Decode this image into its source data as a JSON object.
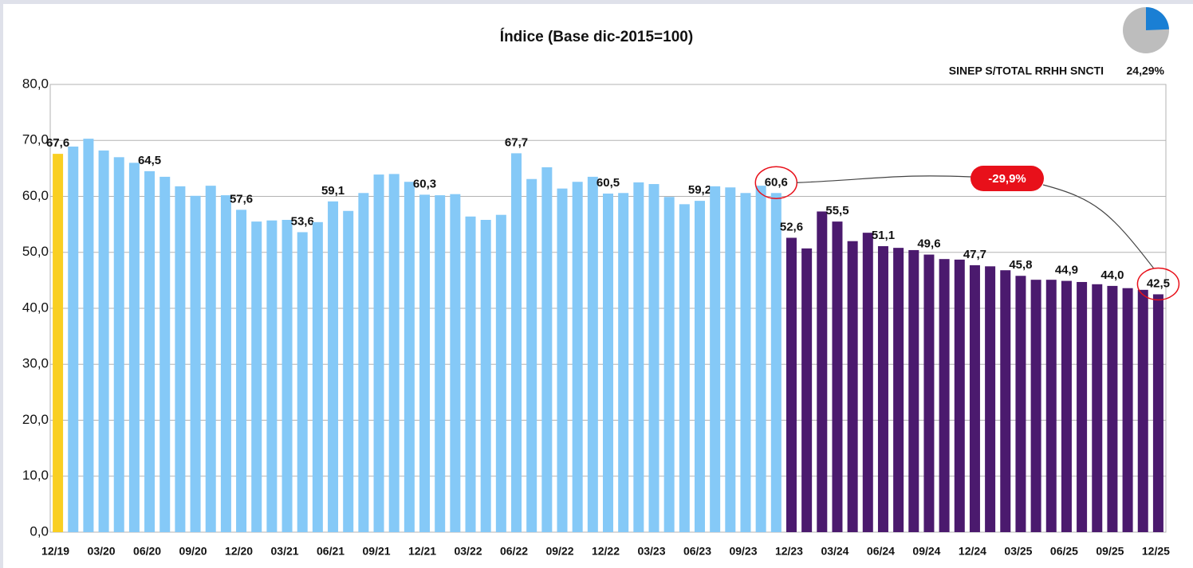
{
  "chart_data": {
    "type": "bar",
    "title": "Índice (Base dic-2015=100)",
    "categories": [
      "12/19",
      null,
      null,
      "03/20",
      null,
      null,
      "06/20",
      null,
      null,
      "09/20",
      null,
      null,
      "12/20",
      null,
      null,
      "03/21",
      null,
      null,
      "06/21",
      null,
      null,
      "09/21",
      null,
      null,
      "12/21",
      null,
      null,
      "03/22",
      null,
      null,
      "06/22",
      null,
      null,
      "09/22",
      null,
      null,
      "12/22",
      null,
      null,
      "03/23",
      null,
      null,
      "06/23",
      null,
      null,
      "09/23",
      null,
      null,
      "12/23",
      null,
      null,
      "03/24",
      null,
      null,
      "06/24",
      null,
      null,
      "09/24",
      null,
      null,
      "12/24",
      null,
      null,
      "03/25",
      null,
      null,
      "06/25",
      null,
      null,
      "09/25",
      null,
      null,
      "12/25"
    ],
    "values": [
      67.6,
      68.9,
      70.3,
      68.2,
      67.0,
      66.0,
      64.5,
      63.5,
      61.8,
      60.1,
      61.9,
      60.2,
      57.6,
      55.5,
      55.7,
      55.8,
      53.6,
      55.4,
      59.1,
      57.4,
      60.6,
      63.9,
      64.0,
      62.6,
      60.3,
      60.2,
      60.4,
      56.4,
      55.8,
      56.7,
      67.7,
      63.1,
      65.2,
      61.4,
      62.6,
      63.5,
      60.5,
      60.6,
      62.5,
      62.2,
      59.9,
      58.6,
      59.2,
      61.8,
      61.6,
      60.6,
      61.9,
      60.6,
      52.6,
      50.7,
      57.3,
      55.5,
      52.0,
      53.5,
      51.1,
      50.8,
      50.4,
      49.6,
      48.8,
      48.7,
      47.7,
      47.5,
      46.8,
      45.8,
      45.1,
      45.1,
      44.9,
      44.7,
      44.3,
      44.0,
      43.6,
      43.3,
      42.5
    ],
    "value_labels": [
      "67,6",
      null,
      null,
      null,
      null,
      null,
      "64,5",
      null,
      null,
      null,
      null,
      null,
      "57,6",
      null,
      null,
      null,
      "53,6",
      null,
      "59,1",
      null,
      null,
      null,
      null,
      null,
      "60,3",
      null,
      null,
      null,
      null,
      null,
      "67,7",
      null,
      null,
      null,
      null,
      null,
      "60,5",
      null,
      null,
      null,
      null,
      null,
      "59,2",
      null,
      null,
      null,
      null,
      "60,6",
      "52,6",
      null,
      null,
      "55,5",
      null,
      null,
      "51,1",
      null,
      null,
      "49,6",
      null,
      null,
      "47,7",
      null,
      null,
      "45,8",
      null,
      null,
      "44,9",
      null,
      null,
      "44,0",
      null,
      null,
      "42,5"
    ],
    "colors": [
      "#f9cf22",
      "#85c9f7",
      "#85c9f7",
      "#85c9f7",
      "#85c9f7",
      "#85c9f7",
      "#85c9f7",
      "#85c9f7",
      "#85c9f7",
      "#85c9f7",
      "#85c9f7",
      "#85c9f7",
      "#85c9f7",
      "#85c9f7",
      "#85c9f7",
      "#85c9f7",
      "#85c9f7",
      "#85c9f7",
      "#85c9f7",
      "#85c9f7",
      "#85c9f7",
      "#85c9f7",
      "#85c9f7",
      "#85c9f7",
      "#85c9f7",
      "#85c9f7",
      "#85c9f7",
      "#85c9f7",
      "#85c9f7",
      "#85c9f7",
      "#85c9f7",
      "#85c9f7",
      "#85c9f7",
      "#85c9f7",
      "#85c9f7",
      "#85c9f7",
      "#85c9f7",
      "#85c9f7",
      "#85c9f7",
      "#85c9f7",
      "#85c9f7",
      "#85c9f7",
      "#85c9f7",
      "#85c9f7",
      "#85c9f7",
      "#85c9f7",
      "#85c9f7",
      "#85c9f7",
      "#4b1a6e",
      "#4b1a6e",
      "#4b1a6e",
      "#4b1a6e",
      "#4b1a6e",
      "#4b1a6e",
      "#4b1a6e",
      "#4b1a6e",
      "#4b1a6e",
      "#4b1a6e",
      "#4b1a6e",
      "#4b1a6e",
      "#4b1a6e",
      "#4b1a6e",
      "#4b1a6e",
      "#4b1a6e",
      "#4b1a6e",
      "#4b1a6e",
      "#4b1a6e",
      "#4b1a6e",
      "#4b1a6e",
      "#4b1a6e",
      "#4b1a6e",
      "#4b1a6e",
      "#4b1a6e"
    ],
    "ylim": [
      0,
      80
    ],
    "yticks": [
      {
        "value": 0,
        "label": "0,0"
      },
      {
        "value": 10,
        "label": "10,0"
      },
      {
        "value": 20,
        "label": "20,0"
      },
      {
        "value": 30,
        "label": "30,0"
      },
      {
        "value": 40,
        "label": "40,0"
      },
      {
        "value": 50,
        "label": "50,0"
      },
      {
        "value": 60,
        "label": "60,0"
      },
      {
        "value": 70,
        "label": "70,0"
      },
      {
        "value": 80,
        "label": "80,0"
      }
    ],
    "grid": true,
    "change": {
      "value": -29.9,
      "label": "-29,9%"
    },
    "share": {
      "name": "SINEP S/TOTAL RRHH SNCTI",
      "value": 24.29,
      "value_label": "24,29%",
      "colors": [
        "#1a7fd4",
        "#bdbdbd"
      ]
    }
  }
}
